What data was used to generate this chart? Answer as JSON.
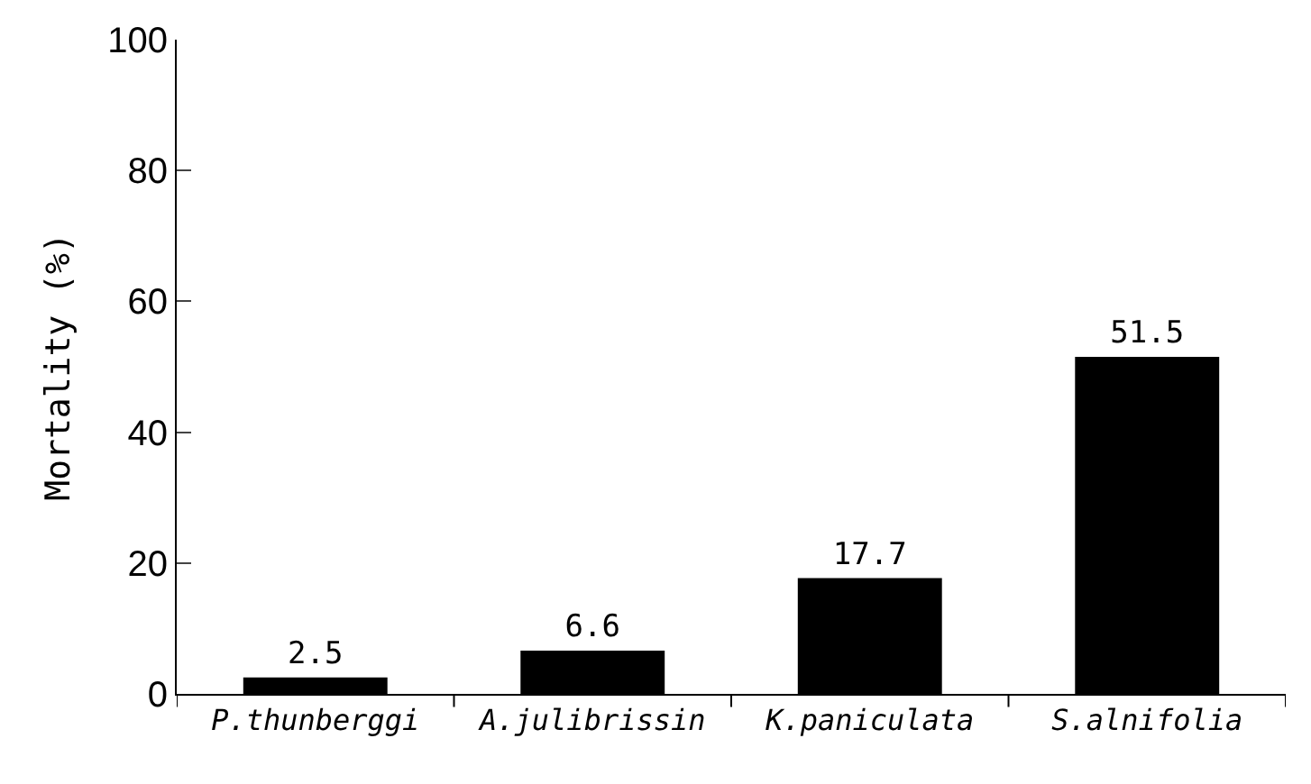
{
  "chart_data": {
    "type": "bar",
    "ylabel": "Mortality (%)",
    "categories": [
      "P.thunberggi",
      "A.julibrissin",
      "K.paniculata",
      "S.alnifolia"
    ],
    "values": [
      2.5,
      6.6,
      17.7,
      51.5
    ],
    "color": "#000000",
    "ylim": [
      0,
      100
    ],
    "yticks": [
      0,
      20,
      40,
      60,
      80,
      100
    ],
    "data_labels": true
  }
}
